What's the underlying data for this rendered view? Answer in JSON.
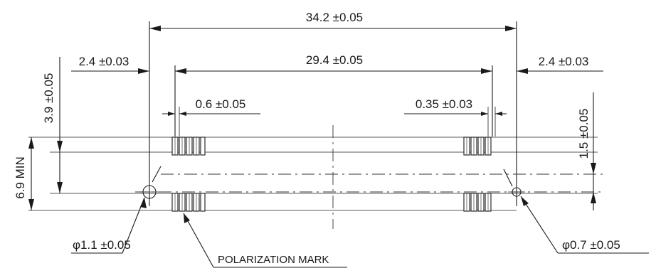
{
  "dimensions": {
    "overall_width": "34.2 ±0.05",
    "pin_span": "29.4 ±0.05",
    "left_edge_offset": "2.4 ±0.03",
    "right_edge_offset": "2.4 ±0.03",
    "pad_width": "0.6 ±0.05",
    "pad_gap": "0.35 ±0.03",
    "height_dim": "3.9 ±0.05",
    "min_height": "6.9 MIN",
    "row_pitch": "1.5 ±0.05",
    "left_hole": "φ1.1 ±0.05",
    "right_hole": "φ0.7 ±0.05"
  },
  "callouts": {
    "polarization": "POLARIZATION MARK"
  },
  "colors": {
    "line": "#1a1a1a",
    "background": "#ffffff"
  }
}
